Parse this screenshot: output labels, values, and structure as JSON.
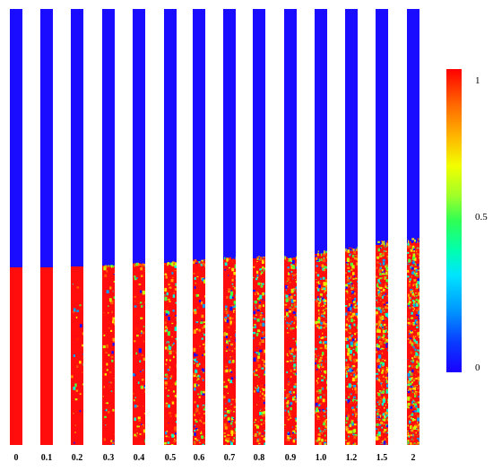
{
  "columns": [
    {
      "label": "0",
      "fraction": 0.0
    },
    {
      "label": "0.1",
      "fraction": 0.0
    },
    {
      "label": "0.2",
      "fraction": 0.04
    },
    {
      "label": "0.3",
      "fraction": 0.08
    },
    {
      "label": "0.4",
      "fraction": 0.1
    },
    {
      "label": "0.5",
      "fraction": 0.16
    },
    {
      "label": "0.6",
      "fraction": 0.18
    },
    {
      "label": "0.7",
      "fraction": 0.22
    },
    {
      "label": "0.8",
      "fraction": 0.26
    },
    {
      "label": "0.9",
      "fraction": 0.26
    },
    {
      "label": "1.0",
      "fraction": 0.32
    },
    {
      "label": "1.2",
      "fraction": 0.38
    },
    {
      "label": "1.5",
      "fraction": 0.44
    },
    {
      "label": "2",
      "fraction": 0.5
    }
  ],
  "colorbar": {
    "top_label": "1",
    "mid_label": "0.5",
    "bottom_label": "0"
  },
  "colors": {
    "phase_low": "#1a0dff",
    "phase_high": "#ff0d0d"
  }
}
